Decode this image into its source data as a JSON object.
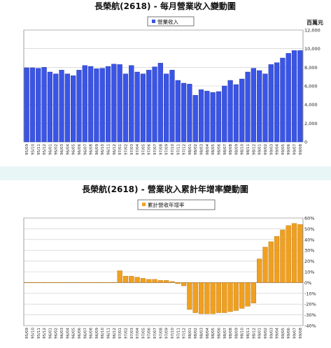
{
  "chart_data": [
    {
      "type": "bar",
      "title": "長榮航(2618) - 每月營業收入變動圖",
      "legend": [
        "營業收入"
      ],
      "unit_label": "百萬元",
      "ylim": [
        0,
        12000
      ],
      "yticks": [
        "0",
        "2,000",
        "4,000",
        "6,000",
        "8,000",
        "10,000",
        "12,000"
      ],
      "grid": true,
      "legend_position": "top-center",
      "categories": [
        "95/09",
        "95/10",
        "95/11",
        "95/12",
        "96/01",
        "96/02",
        "96/03",
        "96/04",
        "96/05",
        "96/06",
        "96/07",
        "96/08",
        "96/09",
        "96/10",
        "96/11",
        "96/12",
        "97/01",
        "97/02",
        "97/03",
        "97/04",
        "97/05",
        "97/06",
        "97/07",
        "97/08",
        "97/09",
        "97/10",
        "97/11",
        "97/12",
        "98/01",
        "98/02",
        "98/03",
        "98/04",
        "98/05",
        "98/06",
        "98/07",
        "98/08",
        "98/09",
        "98/10",
        "98/11",
        "98/12",
        "99/01",
        "99/02",
        "99/03",
        "99/04",
        "99/05",
        "99/06",
        "99/07",
        "99/08"
      ],
      "series": [
        {
          "name": "營業收入",
          "color": "#3a55e6",
          "values": [
            7950,
            7950,
            7900,
            8000,
            7500,
            7300,
            7700,
            7300,
            7100,
            7700,
            8200,
            8100,
            7850,
            7900,
            8100,
            8350,
            8300,
            7300,
            8200,
            7500,
            7300,
            7700,
            8050,
            8450,
            7300,
            7700,
            6600,
            6300,
            6200,
            5000,
            5600,
            5450,
            5300,
            5400,
            6000,
            6600,
            6150,
            6750,
            7500,
            7900,
            7650,
            7300,
            8300,
            8500,
            9000,
            9500,
            9800,
            9800
          ]
        }
      ]
    },
    {
      "type": "bar",
      "title": "長榮航(2618) - 營業收入累計年增率變動圖",
      "legend": [
        "累計營收年增率"
      ],
      "ylim": [
        -40,
        60
      ],
      "yticks": [
        "-40%",
        "-30%",
        "-20%",
        "-10%",
        "0%",
        "10%",
        "20%",
        "30%",
        "40%",
        "50%",
        "60%"
      ],
      "grid": true,
      "legend_position": "top-center",
      "categories": [
        "95/09",
        "95/10",
        "95/11",
        "95/12",
        "96/01",
        "96/02",
        "96/03",
        "96/04",
        "96/05",
        "96/06",
        "96/07",
        "96/08",
        "96/09",
        "96/10",
        "96/11",
        "96/12",
        "97/01",
        "97/02",
        "97/03",
        "97/04",
        "97/05",
        "97/06",
        "97/07",
        "97/08",
        "97/09",
        "97/10",
        "97/11",
        "97/12",
        "98/01",
        "98/02",
        "98/03",
        "98/04",
        "98/05",
        "98/06",
        "98/07",
        "98/08",
        "98/09",
        "98/10",
        "98/11",
        "98/12",
        "99/01",
        "99/02",
        "99/03",
        "99/04",
        "99/05",
        "99/06",
        "99/07",
        "99/08"
      ],
      "series": [
        {
          "name": "累計營收年增率",
          "color": "#f0a020",
          "values": [
            0,
            0,
            0,
            0,
            0,
            0,
            0,
            0,
            0,
            0,
            0,
            0,
            0,
            0,
            0,
            0,
            11,
            6,
            6,
            5,
            4,
            3,
            3,
            2,
            2,
            1,
            -1,
            -3,
            -25,
            -28,
            -29,
            -29,
            -29,
            -28,
            -28,
            -27,
            -26,
            -24,
            -22,
            -19,
            22,
            33,
            38,
            43,
            49,
            53,
            55,
            54
          ]
        }
      ]
    }
  ]
}
